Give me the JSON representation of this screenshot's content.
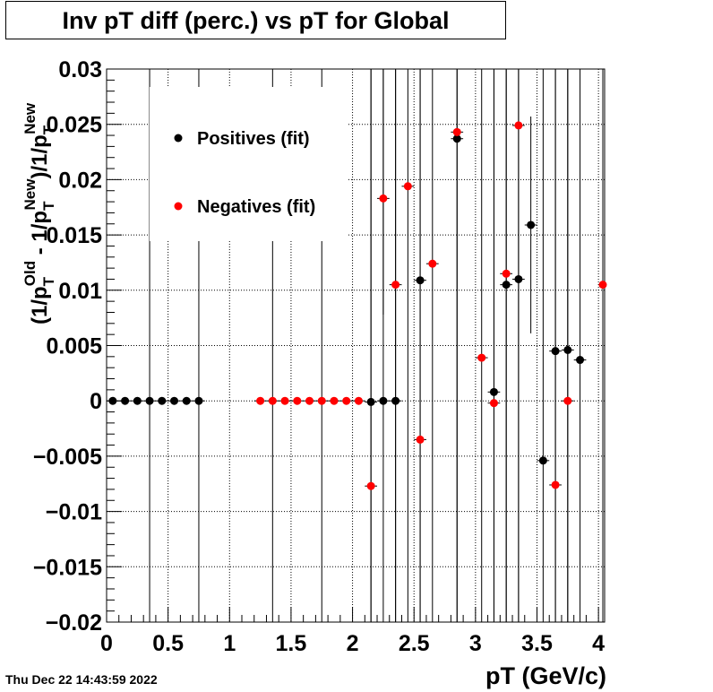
{
  "title": "Inv pT diff (perc.) vs pT for Global",
  "timestamp": "Thu Dec 22 14:43:59 2022",
  "chart_data": {
    "type": "scatter",
    "xlabel": "pT (GeV/c)",
    "ylabel_parts": {
      "open": "(1/p",
      "T1": "T",
      "Old": "Old",
      "mid": " - 1/p",
      "T2": "T",
      "New1": "New",
      "close": ")/1/p",
      "T3": "T",
      "New2": "New"
    },
    "xlim": [
      0,
      4.05
    ],
    "ylim": [
      -0.02,
      0.03
    ],
    "x_ticks": [
      "0",
      "0.5",
      "1",
      "1.5",
      "2",
      "2.5",
      "3",
      "3.5",
      "4"
    ],
    "x_tick_values": [
      0,
      0.5,
      1,
      1.5,
      2,
      2.5,
      3,
      3.5,
      4
    ],
    "y_ticks": [
      "0.03",
      "0.025",
      "0.02",
      "0.015",
      "0.01",
      "0.005",
      "0",
      "−0.005",
      "−0.01",
      "−0.015",
      "−0.02"
    ],
    "y_tick_values": [
      0.03,
      0.025,
      0.02,
      0.015,
      0.01,
      0.005,
      0,
      -0.005,
      -0.01,
      -0.015,
      -0.02
    ],
    "grid": true,
    "legend_position": "top-left",
    "series": [
      {
        "name": "Positives (fit)",
        "color": "#000000",
        "points": [
          {
            "x": 0.05,
            "y": 0,
            "ylo": 0,
            "yhi": 0
          },
          {
            "x": 0.15,
            "y": 0,
            "ylo": 0,
            "yhi": 0
          },
          {
            "x": 0.25,
            "y": 0,
            "ylo": 0,
            "yhi": 0
          },
          {
            "x": 0.35,
            "y": 0,
            "ylo": -0.02,
            "yhi": 0.03
          },
          {
            "x": 0.45,
            "y": 0,
            "ylo": 0,
            "yhi": 0
          },
          {
            "x": 0.55,
            "y": 0,
            "ylo": 0,
            "yhi": 0
          },
          {
            "x": 0.65,
            "y": 0,
            "ylo": 0,
            "yhi": 0
          },
          {
            "x": 0.75,
            "y": 0,
            "ylo": -0.02,
            "yhi": 0.03
          },
          {
            "x": 2.15,
            "y": -0.0001,
            "ylo": -0.02,
            "yhi": 0.03
          },
          {
            "x": 2.25,
            "y": 0,
            "ylo": -0.02,
            "yhi": 0.03
          },
          {
            "x": 2.35,
            "y": 0,
            "ylo": -0.02,
            "yhi": 0.03
          },
          {
            "x": 2.55,
            "y": 0.0109,
            "ylo": -0.02,
            "yhi": 0.03
          },
          {
            "x": 2.85,
            "y": 0.0237,
            "ylo": -0.02,
            "yhi": 0.03
          },
          {
            "x": 3.15,
            "y": 0.0008,
            "ylo": -0.02,
            "yhi": 0.03
          },
          {
            "x": 3.25,
            "y": 0.0105,
            "ylo": -0.02,
            "yhi": 0.03
          },
          {
            "x": 3.35,
            "y": 0.011,
            "ylo": -0.02,
            "yhi": 0.03
          },
          {
            "x": 3.45,
            "y": 0.0159,
            "ylo": 0.0061,
            "yhi": 0.0257
          },
          {
            "x": 3.55,
            "y": -0.0054,
            "ylo": -0.02,
            "yhi": 0.03
          },
          {
            "x": 3.65,
            "y": 0.0045,
            "ylo": -0.02,
            "yhi": 0.03
          },
          {
            "x": 3.75,
            "y": 0.0046,
            "ylo": -0.02,
            "yhi": 0.03
          },
          {
            "x": 3.85,
            "y": 0.0037,
            "ylo": -0.02,
            "yhi": 0.03
          }
        ]
      },
      {
        "name": "Negatives (fit)",
        "color": "#ff0000",
        "points": [
          {
            "x": 1.25,
            "y": 0,
            "ylo": 0,
            "yhi": 0
          },
          {
            "x": 1.35,
            "y": 0,
            "ylo": -0.02,
            "yhi": 0.03
          },
          {
            "x": 1.45,
            "y": 0,
            "ylo": 0,
            "yhi": 0
          },
          {
            "x": 1.55,
            "y": 0,
            "ylo": 0,
            "yhi": 0
          },
          {
            "x": 1.65,
            "y": 0,
            "ylo": 0,
            "yhi": 0
          },
          {
            "x": 1.75,
            "y": 0,
            "ylo": -0.02,
            "yhi": 0.03
          },
          {
            "x": 1.85,
            "y": 0,
            "ylo": 0,
            "yhi": 0
          },
          {
            "x": 1.95,
            "y": 0,
            "ylo": 0,
            "yhi": 0
          },
          {
            "x": 2.05,
            "y": 0,
            "ylo": 0,
            "yhi": 0
          },
          {
            "x": 2.15,
            "y": -0.0077,
            "ylo": -0.02,
            "yhi": 0.03
          },
          {
            "x": 2.25,
            "y": 0.0183,
            "ylo": 0.0078,
            "yhi": 0.03
          },
          {
            "x": 2.35,
            "y": 0.0105,
            "ylo": -0.02,
            "yhi": 0.03
          },
          {
            "x": 2.45,
            "y": 0.0194,
            "ylo": -0.02,
            "yhi": 0.03
          },
          {
            "x": 2.55,
            "y": -0.0035,
            "ylo": -0.02,
            "yhi": 0.03
          },
          {
            "x": 2.65,
            "y": 0.0124,
            "ylo": -0.02,
            "yhi": 0.03
          },
          {
            "x": 2.85,
            "y": 0.0243,
            "ylo": -0.02,
            "yhi": 0.03
          },
          {
            "x": 3.05,
            "y": 0.0039,
            "ylo": -0.02,
            "yhi": 0.03
          },
          {
            "x": 3.15,
            "y": -0.0002,
            "ylo": -0.02,
            "yhi": 0.03
          },
          {
            "x": 3.25,
            "y": 0.0115,
            "ylo": -0.02,
            "yhi": 0.03
          },
          {
            "x": 3.35,
            "y": 0.0249,
            "ylo": -0.02,
            "yhi": 0.03
          },
          {
            "x": 3.65,
            "y": -0.0076,
            "ylo": -0.02,
            "yhi": 0.03
          },
          {
            "x": 3.75,
            "y": 0,
            "ylo": -0.02,
            "yhi": 0.03
          },
          {
            "x": 4.05,
            "y": 0.0105,
            "ylo": -0.02,
            "yhi": 0.03
          }
        ]
      }
    ]
  }
}
